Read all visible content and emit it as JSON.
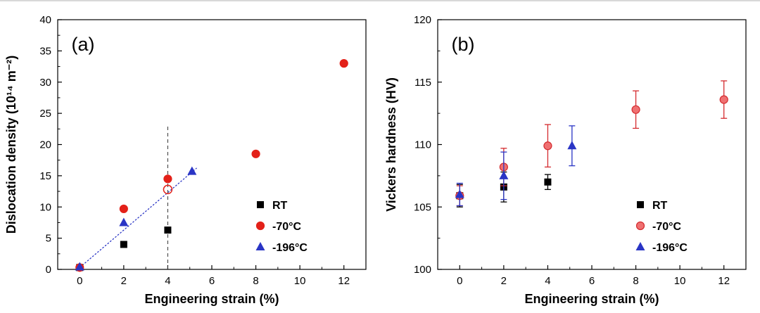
{
  "figure": {
    "background": "#ffffff",
    "top_border_color": "#d8d8d8"
  },
  "chart_data": [
    {
      "id": "chart-a",
      "type": "scatter",
      "panel_label": "(a)",
      "xlabel": "Engineering strain (%)",
      "ylabel": "Dislocation density (10¹⁴ m⁻²)",
      "xlim": [
        -1,
        13
      ],
      "ylim": [
        0,
        40
      ],
      "xticks": [
        0,
        2,
        4,
        6,
        8,
        10,
        12
      ],
      "yticks": [
        0,
        5,
        10,
        15,
        20,
        25,
        30,
        35,
        40
      ],
      "x_minor_step": 1,
      "y_minor_step": 2.5,
      "grid": false,
      "legend_position": "lower-right",
      "series": [
        {
          "name": "RT",
          "marker": "square",
          "color": "#000000",
          "points": [
            [
              0,
              0.3
            ],
            [
              2,
              4.0
            ],
            [
              4,
              6.3
            ]
          ]
        },
        {
          "name": "-70°C",
          "marker": "circle",
          "color": "#e32119",
          "points": [
            [
              0,
              0.3
            ],
            [
              2,
              9.7
            ],
            [
              4,
              14.5
            ],
            [
              8,
              18.5
            ],
            [
              12,
              33.0
            ]
          ]
        },
        {
          "name": "-196°C",
          "marker": "triangle",
          "color": "#2a35c5",
          "points": [
            [
              0,
              0.4
            ],
            [
              2,
              7.5
            ],
            [
              5.1,
              15.7
            ]
          ]
        }
      ],
      "annotations": {
        "fit_line": {
          "style": "dotted",
          "color": "#2a35c5",
          "from": [
            -0.1,
            0.0
          ],
          "to": [
            5.3,
            16.2
          ]
        },
        "vline": {
          "style": "dashed",
          "color": "#333333",
          "x": 4,
          "y_from": 0,
          "y_to": 23.2
        },
        "open_marker": {
          "shape": "open-circle",
          "color": "#e32119",
          "point": [
            4,
            12.8
          ]
        }
      },
      "legend": [
        "RT",
        "-70°C",
        "-196°C"
      ]
    },
    {
      "id": "chart-b",
      "type": "scatter",
      "panel_label": "(b)",
      "xlabel": "Engineering strain (%)",
      "ylabel": "Vickers hardness (HV)",
      "xlim": [
        -1,
        13
      ],
      "ylim": [
        100,
        120
      ],
      "xticks": [
        0,
        2,
        4,
        6,
        8,
        10,
        12
      ],
      "yticks": [
        100,
        105,
        110,
        115,
        120
      ],
      "x_minor_step": 1,
      "y_minor_step": 2.5,
      "grid": false,
      "legend_position": "lower-right",
      "series": [
        {
          "name": "RT",
          "marker": "square",
          "color": "#000000",
          "points": [
            [
              0,
              105.9
            ],
            [
              2,
              106.6
            ],
            [
              4,
              107.0
            ]
          ],
          "errors": [
            0.9,
            1.2,
            0.6
          ]
        },
        {
          "name": "-70°C",
          "marker": "circle",
          "color": "#d42a2e",
          "fill": "#ef7071",
          "points": [
            [
              0,
              105.9
            ],
            [
              2,
              108.2
            ],
            [
              4,
              109.9
            ],
            [
              8,
              112.8
            ],
            [
              12,
              113.6
            ]
          ],
          "errors": [
            0.8,
            1.5,
            1.7,
            1.5,
            1.5
          ]
        },
        {
          "name": "-196°C",
          "marker": "triangle",
          "color": "#2a35c5",
          "points": [
            [
              0,
              106.0
            ],
            [
              2,
              107.5
            ],
            [
              5.1,
              109.9
            ]
          ],
          "errors": [
            0.9,
            1.9,
            1.6
          ]
        }
      ],
      "legend": [
        "RT",
        "-70°C",
        "-196°C"
      ]
    }
  ]
}
